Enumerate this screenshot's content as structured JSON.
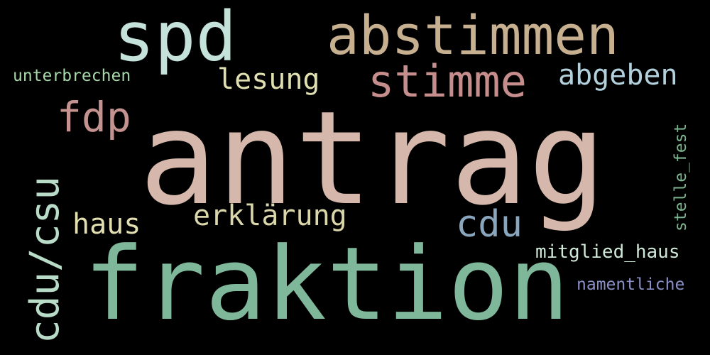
{
  "words": {
    "antrag": {
      "text": "antrag",
      "color": "#d5b8ab"
    },
    "fraktion": {
      "text": "fraktion",
      "color": "#7fb79a"
    },
    "spd": {
      "text": "spd",
      "color": "#c5e2da"
    },
    "abstimmen": {
      "text": "abstimmen",
      "color": "#c7b08f"
    },
    "stimme": {
      "text": "stimme",
      "color": "#c58d8c"
    },
    "cdu_csu": {
      "text": "cdu/csu",
      "color": "#b9dcc9"
    },
    "fdp": {
      "text": "fdp",
      "color": "#c49390"
    },
    "abgeben": {
      "text": "abgeben",
      "color": "#b3d1dc"
    },
    "lesung": {
      "text": "lesung",
      "color": "#e0dfb0"
    },
    "erklaerung": {
      "text": "erklärung",
      "color": "#d9d6aa"
    },
    "haus": {
      "text": "haus",
      "color": "#e3dfb0"
    },
    "cdu": {
      "text": "cdu",
      "color": "#8aa6bd"
    },
    "unterbrechen": {
      "text": "unterbrechen",
      "color": "#a7d6aa"
    },
    "stelle_fest": {
      "text": "stelle_fest",
      "color": "#7db48f"
    },
    "mitglied_haus": {
      "text": "mitglied_haus",
      "color": "#cfe8d8"
    },
    "namentliche": {
      "text": "namentliche",
      "color": "#8a90c6"
    }
  },
  "background": "#000000"
}
